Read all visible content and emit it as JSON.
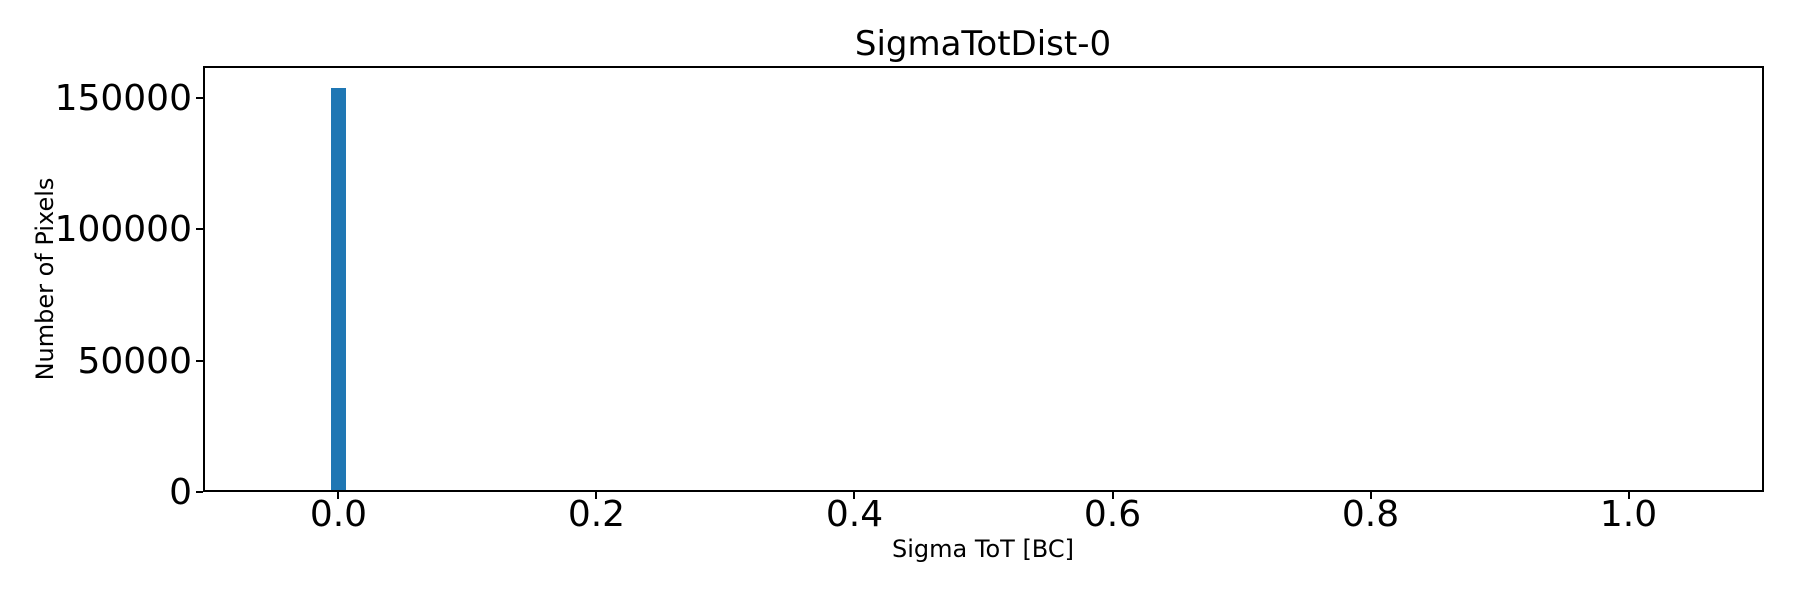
{
  "chart_data": {
    "type": "bar",
    "title": "SigmaTotDist-0",
    "xlabel": "Sigma ToT [BC]",
    "ylabel": "Number of Pixels",
    "xlim": [
      -0.105,
      1.105
    ],
    "ylim": [
      0,
      162000
    ],
    "grid": false,
    "legend": null,
    "bar_color": "#1f77b4",
    "axis_color": "#000000",
    "background_color": "#ffffff",
    "x_ticks": [
      {
        "value": 0.0,
        "label": "0.0"
      },
      {
        "value": 0.2,
        "label": "0.2"
      },
      {
        "value": 0.4,
        "label": "0.4"
      },
      {
        "value": 0.6,
        "label": "0.6"
      },
      {
        "value": 0.8,
        "label": "0.8"
      },
      {
        "value": 1.0,
        "label": "1.0"
      }
    ],
    "y_ticks": [
      {
        "value": 0,
        "label": "0"
      },
      {
        "value": 50000,
        "label": "50000"
      },
      {
        "value": 100000,
        "label": "100000"
      },
      {
        "value": 150000,
        "label": "150000"
      }
    ],
    "bars": [
      {
        "x": 0.0,
        "bin_width": 0.011,
        "count": 153600
      }
    ]
  }
}
